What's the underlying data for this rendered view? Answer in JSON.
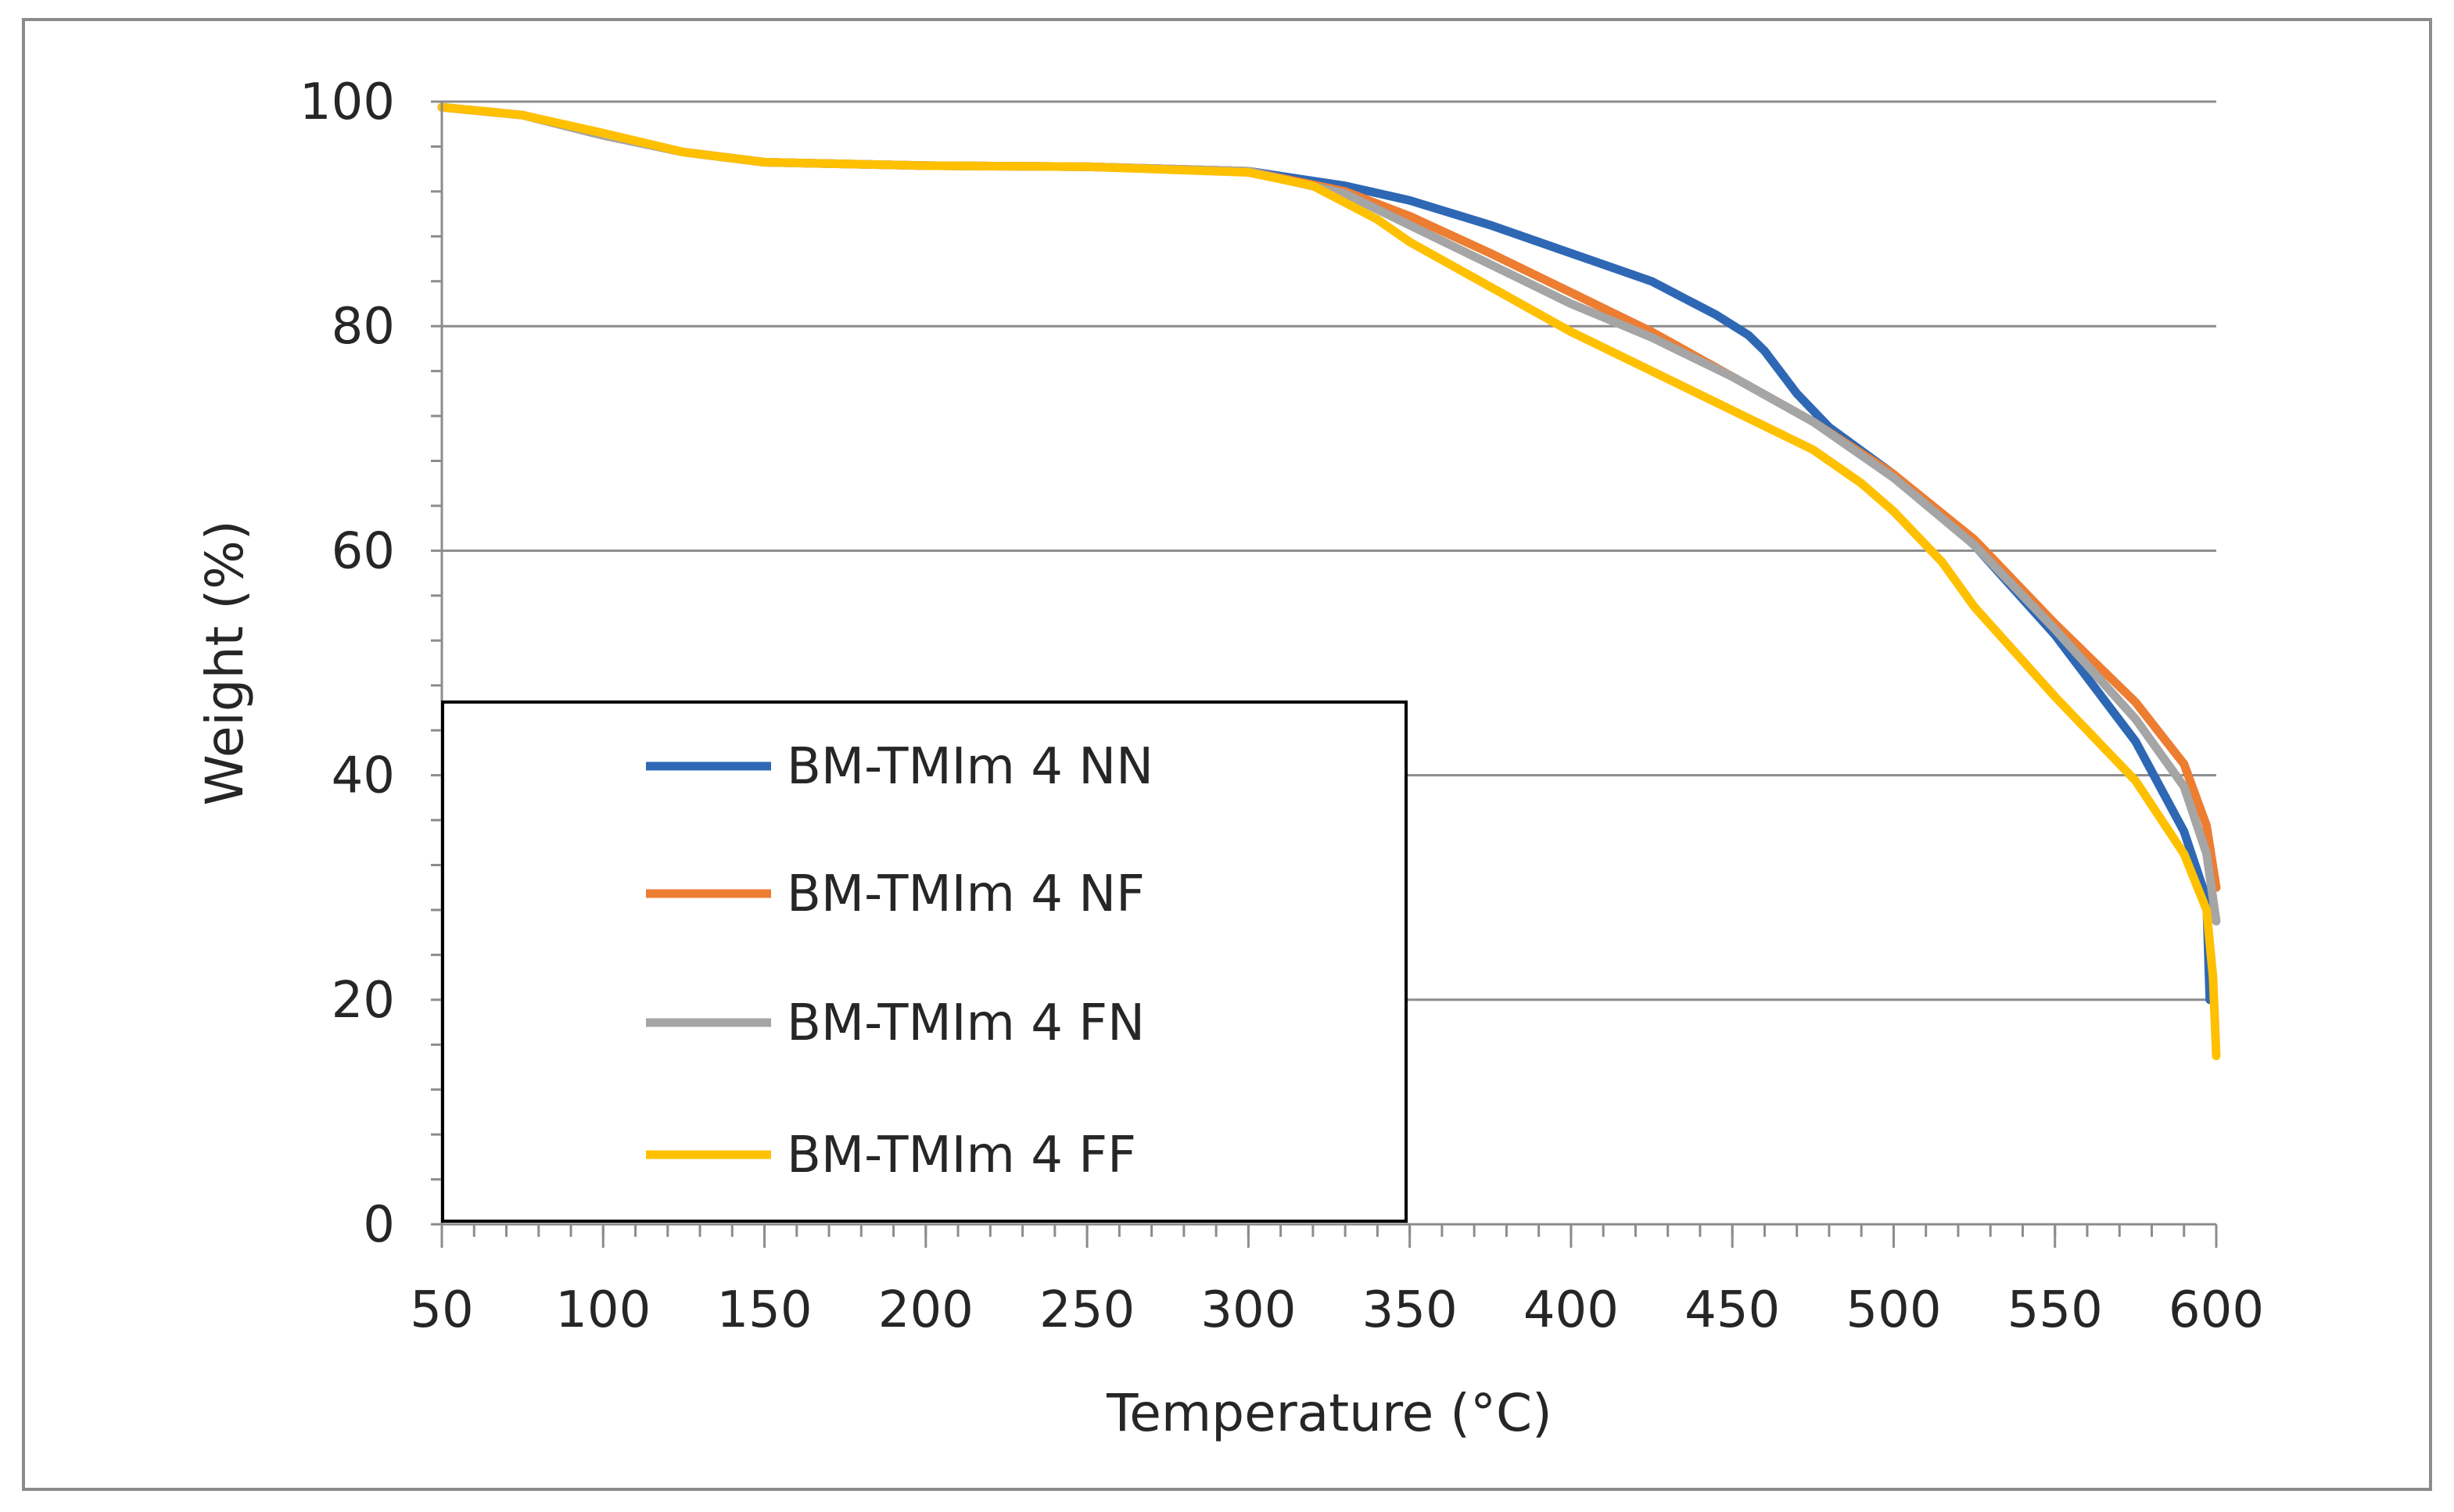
{
  "chart_data": {
    "type": "line",
    "title": "",
    "xlabel": "Temperature (°C)",
    "ylabel": "Weight (%)",
    "xlim": [
      50,
      600
    ],
    "ylim": [
      0,
      100
    ],
    "xticks": [
      "50",
      "100",
      "150",
      "200",
      "250",
      "300",
      "350",
      "400",
      "450",
      "500",
      "550",
      "600"
    ],
    "yticks": [
      "0",
      "20",
      "40",
      "60",
      "80",
      "100"
    ],
    "x_tick_values": [
      50,
      100,
      150,
      200,
      250,
      300,
      350,
      400,
      450,
      500,
      550,
      600
    ],
    "y_tick_values": [
      0,
      20,
      40,
      60,
      80,
      100
    ],
    "grid": "horizontal",
    "legend_position": "lower-left",
    "series": [
      {
        "name": "BM-TMIm 4 NN",
        "color": "#2E68B5",
        "points": [
          [
            50,
            99.5
          ],
          [
            75,
            98.8
          ],
          [
            100,
            97
          ],
          [
            125,
            95.5
          ],
          [
            150,
            94.6
          ],
          [
            200,
            94.3
          ],
          [
            250,
            94.2
          ],
          [
            300,
            93.8
          ],
          [
            330,
            92.5
          ],
          [
            350,
            91.2
          ],
          [
            375,
            89
          ],
          [
            400,
            86.5
          ],
          [
            425,
            84
          ],
          [
            445,
            81
          ],
          [
            455,
            79.2
          ],
          [
            460,
            77.8
          ],
          [
            470,
            74
          ],
          [
            480,
            71
          ],
          [
            500,
            66.8
          ],
          [
            525,
            60.5
          ],
          [
            550,
            52.5
          ],
          [
            575,
            43
          ],
          [
            590,
            35
          ],
          [
            597,
            29
          ],
          [
            598,
            20
          ]
        ]
      },
      {
        "name": "BM-TMIm 4 NF",
        "color": "#ED7D31",
        "points": [
          [
            50,
            99.5
          ],
          [
            75,
            98.8
          ],
          [
            100,
            97
          ],
          [
            125,
            95.5
          ],
          [
            150,
            94.6
          ],
          [
            200,
            94.3
          ],
          [
            250,
            94.2
          ],
          [
            300,
            93.8
          ],
          [
            330,
            92
          ],
          [
            350,
            89.8
          ],
          [
            375,
            86.5
          ],
          [
            400,
            83
          ],
          [
            425,
            79.5
          ],
          [
            450,
            75.5
          ],
          [
            475,
            71.5
          ],
          [
            500,
            66.8
          ],
          [
            525,
            61
          ],
          [
            550,
            53.5
          ],
          [
            575,
            46.5
          ],
          [
            590,
            41
          ],
          [
            597,
            35.5
          ],
          [
            600,
            30
          ]
        ]
      },
      {
        "name": "BM-TMIm 4 FN",
        "color": "#A5A5A5",
        "points": [
          [
            50,
            99.5
          ],
          [
            75,
            98.8
          ],
          [
            100,
            97
          ],
          [
            125,
            95.5
          ],
          [
            150,
            94.6
          ],
          [
            200,
            94.3
          ],
          [
            250,
            94.2
          ],
          [
            300,
            93.8
          ],
          [
            330,
            91.8
          ],
          [
            350,
            89
          ],
          [
            375,
            85.5
          ],
          [
            400,
            82
          ],
          [
            425,
            79
          ],
          [
            450,
            75.5
          ],
          [
            475,
            71.5
          ],
          [
            500,
            66.5
          ],
          [
            525,
            60.5
          ],
          [
            550,
            53
          ],
          [
            575,
            45
          ],
          [
            590,
            39
          ],
          [
            597,
            33
          ],
          [
            600,
            27
          ]
        ]
      },
      {
        "name": "BM-TMIm 4 FF",
        "color": "#FFC000",
        "points": [
          [
            50,
            99.5
          ],
          [
            75,
            98.8
          ],
          [
            100,
            97.2
          ],
          [
            125,
            95.5
          ],
          [
            150,
            94.6
          ],
          [
            200,
            94.3
          ],
          [
            250,
            94.2
          ],
          [
            300,
            93.7
          ],
          [
            320,
            92.5
          ],
          [
            340,
            89.5
          ],
          [
            350,
            87.5
          ],
          [
            375,
            83.5
          ],
          [
            400,
            79.5
          ],
          [
            425,
            76
          ],
          [
            450,
            72.5
          ],
          [
            475,
            69
          ],
          [
            490,
            66
          ],
          [
            500,
            63.5
          ],
          [
            515,
            59
          ],
          [
            525,
            55
          ],
          [
            550,
            47
          ],
          [
            575,
            39.5
          ],
          [
            590,
            33
          ],
          [
            597,
            28
          ],
          [
            599,
            22
          ],
          [
            600,
            15
          ]
        ]
      }
    ]
  }
}
